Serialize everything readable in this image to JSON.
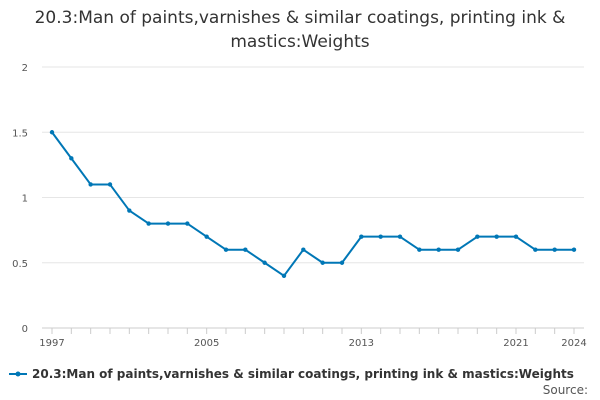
{
  "chart_data": {
    "type": "line",
    "title": "20.3:Man of paints,varnishes & similar coatings, printing ink & mastics:Weights",
    "xlabel": "",
    "ylabel": "",
    "x": [
      1997,
      1998,
      1999,
      2000,
      2001,
      2002,
      2003,
      2004,
      2005,
      2006,
      2007,
      2008,
      2009,
      2010,
      2011,
      2012,
      2013,
      2014,
      2015,
      2016,
      2017,
      2018,
      2019,
      2020,
      2021,
      2022,
      2023,
      2024
    ],
    "x_ticks": [
      "1997",
      "2005",
      "2013",
      "2021",
      "2024"
    ],
    "y_ticks": [
      "0",
      "0.5",
      "1",
      "1.5",
      "2"
    ],
    "ylim": [
      0,
      2
    ],
    "grid": true,
    "legend_placement": "bottom-left",
    "series": [
      {
        "name": "20.3:Man of paints,varnishes & similar coatings, printing ink & mastics:Weights",
        "color": "#0077b6",
        "values": [
          1.5,
          1.3,
          1.1,
          1.1,
          0.9,
          0.8,
          0.8,
          0.8,
          0.7,
          0.6,
          0.6,
          0.5,
          0.4,
          0.6,
          0.5,
          0.5,
          0.7,
          0.7,
          0.7,
          0.6,
          0.6,
          0.6,
          0.7,
          0.7,
          0.7,
          0.6,
          0.6,
          0.6
        ]
      }
    ]
  },
  "source_label": "Source:"
}
